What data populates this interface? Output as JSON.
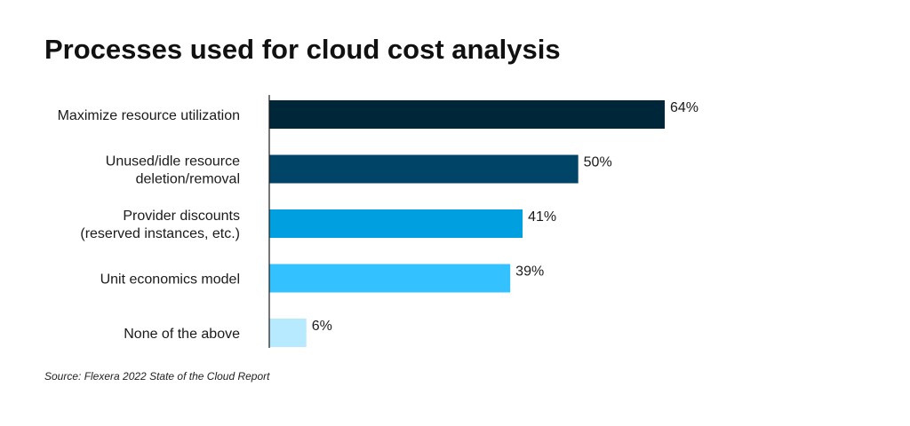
{
  "chart_data": {
    "type": "bar",
    "orientation": "horizontal",
    "title": "Processes used for cloud cost analysis",
    "categories": [
      [
        "Maximize resource utilization"
      ],
      [
        "Unused/idle resource",
        "deletion/removal"
      ],
      [
        "Provider discounts",
        "(reserved instances, etc.)"
      ],
      [
        "Unit economics model"
      ],
      [
        "None of the above"
      ]
    ],
    "values": [
      64,
      50,
      41,
      39,
      6
    ],
    "value_labels": [
      "64%",
      "50%",
      "41%",
      "39%",
      "6%"
    ],
    "colors": [
      "#00263a",
      "#004568",
      "#00a0e0",
      "#34c1ff",
      "#b7e9ff"
    ],
    "xlim": [
      0,
      100
    ],
    "unit": "%",
    "source": "Source: Flexera 2022 State of the Cloud Report"
  }
}
